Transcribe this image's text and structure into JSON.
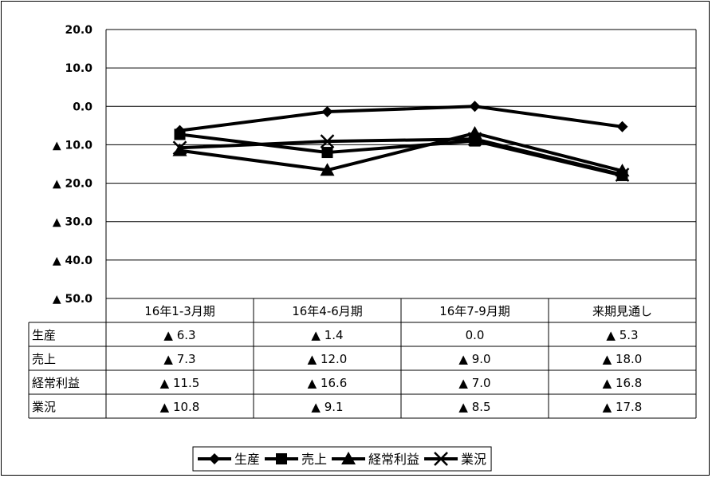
{
  "chart_data": {
    "type": "line",
    "title": "",
    "xlabel": "",
    "ylabel": "",
    "categories": [
      "16年1-3月期",
      "16年4-6月期",
      "16年7-9月期",
      "来期見通し"
    ],
    "ylim": [
      -50,
      20
    ],
    "y_ticks": [
      20,
      10,
      0,
      -10,
      -20,
      -30,
      -40,
      -50
    ],
    "y_tick_labels": [
      "20.0",
      "10.0",
      "0.0",
      "▲ 10.0",
      "▲ 20.0",
      "▲ 30.0",
      "▲ 40.0",
      "▲ 50.0"
    ],
    "grid": true,
    "legend_position": "bottom",
    "series": [
      {
        "name": "生産",
        "marker": "diamond",
        "values": [
          -6.3,
          -1.4,
          0.0,
          -5.3
        ],
        "labels": [
          "▲ 6.3",
          "▲ 1.4",
          "0.0",
          "▲ 5.3"
        ]
      },
      {
        "name": "売上",
        "marker": "square",
        "values": [
          -7.3,
          -12.0,
          -9.0,
          -18.0
        ],
        "labels": [
          "▲ 7.3",
          "▲ 12.0",
          "▲ 9.0",
          "▲ 18.0"
        ]
      },
      {
        "name": "経常利益",
        "marker": "triangle",
        "values": [
          -11.5,
          -16.6,
          -7.0,
          -16.8
        ],
        "labels": [
          "▲ 11.5",
          "▲ 16.6",
          "▲ 7.0",
          "▲ 16.8"
        ]
      },
      {
        "name": "業況",
        "marker": "x",
        "values": [
          -10.8,
          -9.1,
          -8.5,
          -17.8
        ],
        "labels": [
          "▲ 10.8",
          "▲ 9.1",
          "▲ 8.5",
          "▲ 17.8"
        ]
      }
    ],
    "line_color": "#000000"
  }
}
